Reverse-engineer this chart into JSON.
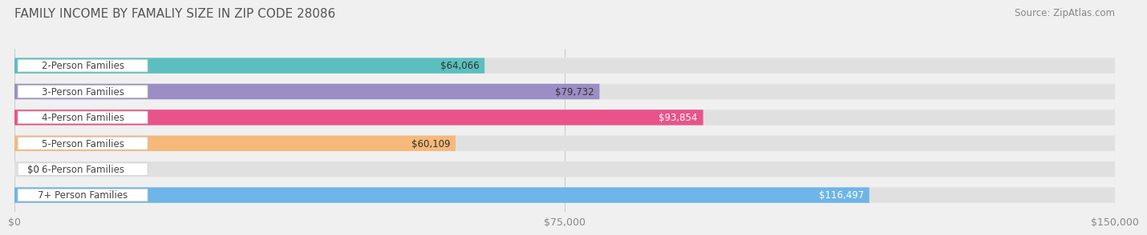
{
  "title": "FAMILY INCOME BY FAMALIY SIZE IN ZIP CODE 28086",
  "source": "Source: ZipAtlas.com",
  "categories": [
    "2-Person Families",
    "3-Person Families",
    "4-Person Families",
    "5-Person Families",
    "6-Person Families",
    "7+ Person Families"
  ],
  "values": [
    64066,
    79732,
    93854,
    60109,
    0,
    116497
  ],
  "bar_colors": [
    "#5BBFBF",
    "#9B8EC4",
    "#E8538A",
    "#F5B97A",
    "#F2A0A8",
    "#6EB5E8"
  ],
  "label_colors": [
    "#333333",
    "#333333",
    "#ffffff",
    "#333333",
    "#333333",
    "#ffffff"
  ],
  "x_max": 150000,
  "x_ticks": [
    0,
    75000,
    150000
  ],
  "x_tick_labels": [
    "$0",
    "$75,000",
    "$150,000"
  ],
  "title_fontsize": 11,
  "source_fontsize": 8.5,
  "tick_fontsize": 9,
  "label_fontsize": 8.5,
  "category_fontsize": 8.5,
  "background_color": "#f0f0f0"
}
